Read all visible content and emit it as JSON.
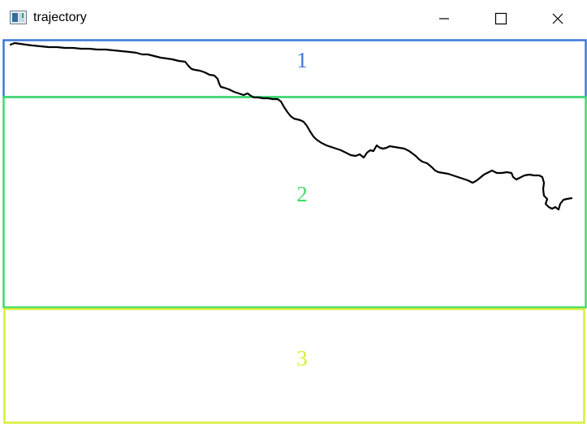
{
  "window": {
    "title": "trajectory",
    "controls": {
      "minimize_icon": "minimize-icon",
      "maximize_icon": "maximize-icon",
      "close_icon": "close-icon"
    }
  },
  "canvas": {
    "background": "#ffffff",
    "trajectory_color": "#000000",
    "regions": [
      {
        "label": "1",
        "color": "#3b78d8"
      },
      {
        "label": "2",
        "color": "#3ddc6a"
      },
      {
        "label": "3",
        "color": "#d8ee36"
      }
    ]
  }
}
